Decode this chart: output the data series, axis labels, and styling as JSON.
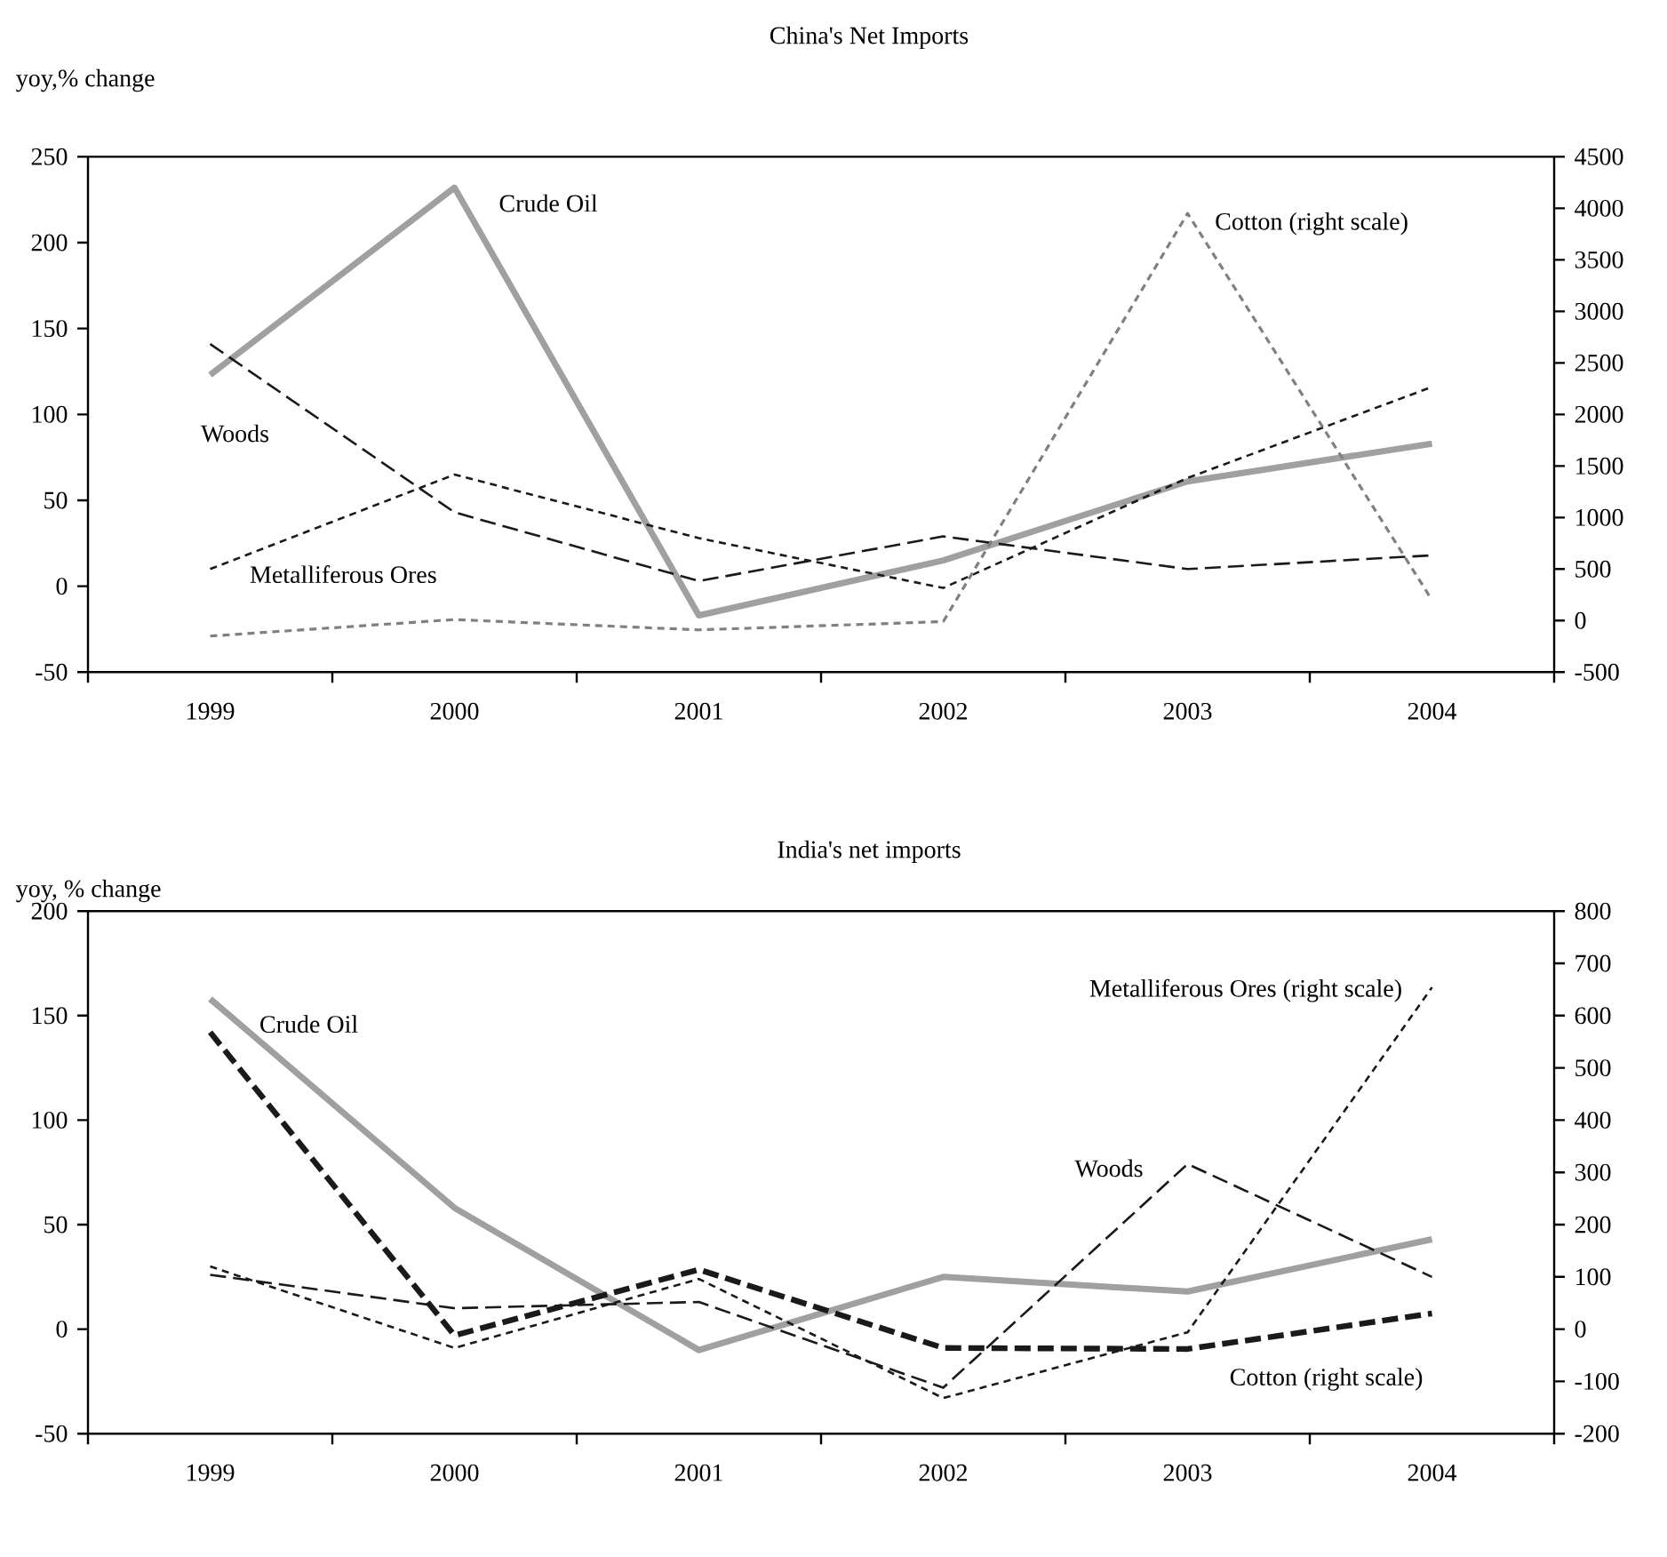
{
  "chart_data": [
    {
      "type": "line",
      "title": "China's Net Imports",
      "ylabel": "yoy,% change",
      "categories": [
        "1999",
        "2000",
        "2001",
        "2002",
        "2003",
        "2004"
      ],
      "ylim": [
        -50,
        250
      ],
      "yticks": [
        -50,
        0,
        50,
        100,
        150,
        200,
        250
      ],
      "y2lim": [
        -500,
        4500
      ],
      "y2ticks": [
        -500,
        0,
        500,
        1000,
        1500,
        2000,
        2500,
        3000,
        3500,
        4000,
        4500
      ],
      "series": [
        {
          "name": "Crude Oil",
          "color": "#a0a0a0",
          "line_style": "solid",
          "values": [
            123,
            232,
            -17,
            15,
            61,
            83
          ]
        },
        {
          "name": "Cotton (right scale)",
          "color": "#808080",
          "line_style": "dotted",
          "axis": "y2",
          "values": [
            -150,
            10,
            -90,
            -10,
            3950,
            200
          ]
        },
        {
          "name": "Woods",
          "color": "#1a1a1a",
          "line_style": "dashed",
          "values": [
            141,
            43,
            3,
            29,
            10,
            18
          ]
        },
        {
          "name": "Metalliferous Ores",
          "color": "#1a1a1a",
          "line_style": "dotted",
          "values": [
            10,
            65,
            28,
            -1,
            63,
            116
          ]
        }
      ]
    },
    {
      "type": "line",
      "title": "India's net imports",
      "ylabel": "yoy, % change",
      "categories": [
        "1999",
        "2000",
        "2001",
        "2002",
        "2003",
        "2004"
      ],
      "ylim": [
        -50,
        200
      ],
      "yticks": [
        -50,
        0,
        50,
        100,
        150,
        200
      ],
      "y2lim": [
        -200,
        800
      ],
      "y2ticks": [
        -200,
        -100,
        0,
        100,
        200,
        300,
        400,
        500,
        600,
        700,
        800
      ],
      "series": [
        {
          "name": "Crude Oil",
          "color": "#a0a0a0",
          "line_style": "solid",
          "values": [
            158,
            58,
            -10,
            25,
            18,
            43
          ]
        },
        {
          "name": "Metalliferous Ores (right scale)",
          "color": "#1a1a1a",
          "line_style": "dotted",
          "axis": "y2",
          "values": [
            120,
            -36,
            96,
            -132,
            -6,
            654
          ]
        },
        {
          "name": "Woods",
          "color": "#1a1a1a",
          "line_style": "dashed",
          "values": [
            26,
            10,
            13,
            -28,
            79,
            25
          ]
        },
        {
          "name": "Cotton (right scale)",
          "color": "#1a1a1a",
          "line_style": "dashed",
          "axis": "y2",
          "values": [
            568,
            -12,
            114,
            -36,
            -38,
            30
          ]
        }
      ]
    }
  ]
}
